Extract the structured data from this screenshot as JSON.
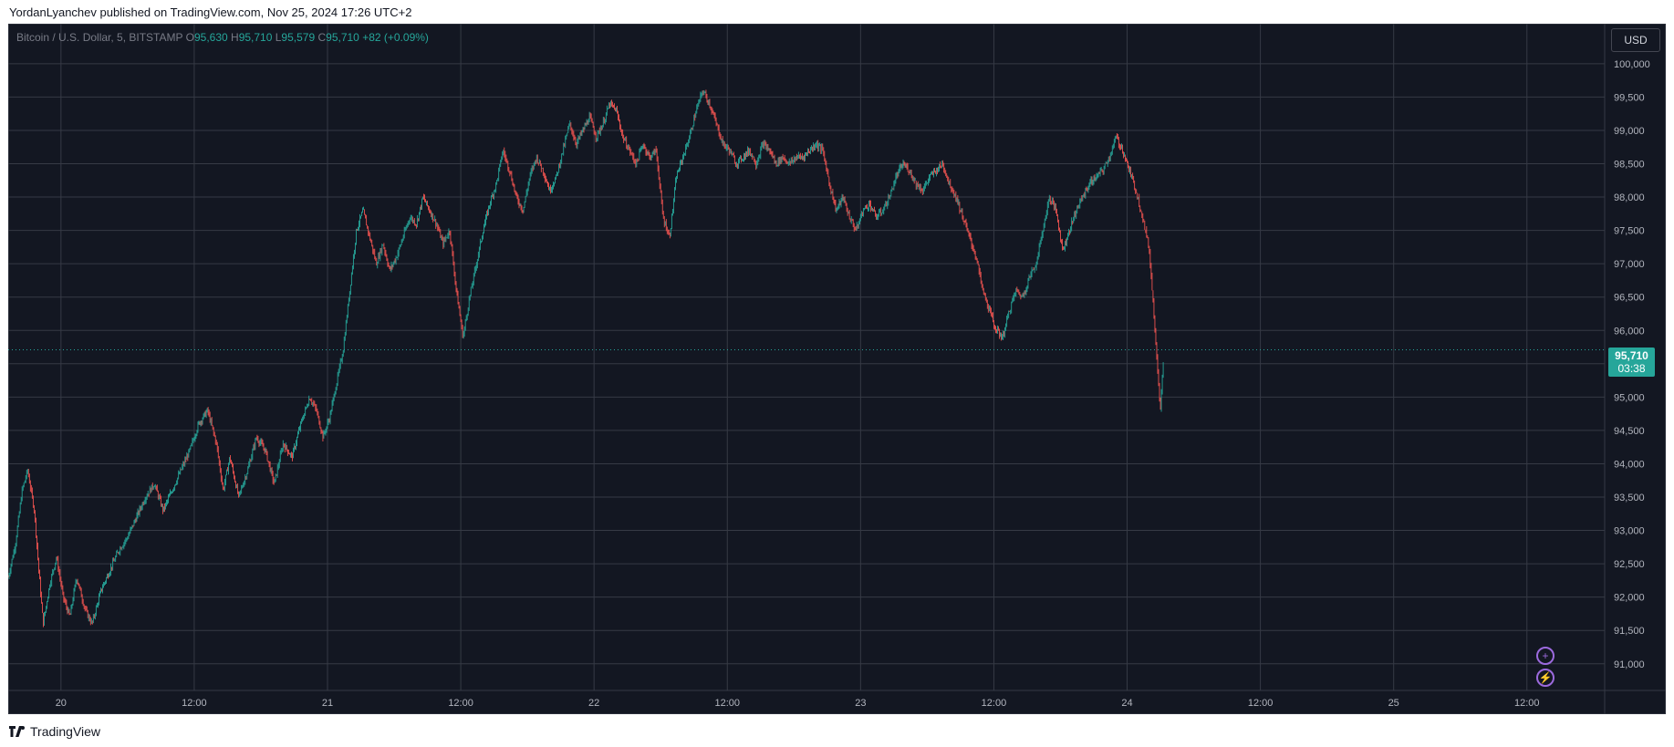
{
  "header": {
    "publish_text": "YordanLyanchev published on TradingView.com, Nov 25, 2024 17:26 UTC+2"
  },
  "legend": {
    "symbol": "Bitcoin / U.S. Dollar, 5, BITSTAMP",
    "o_label": "O",
    "o_value": "95,630",
    "h_label": "H",
    "h_value": "95,710",
    "l_label": "L",
    "l_value": "95,579",
    "c_label": "C",
    "c_value": "95,710",
    "change": "+82 (+0.09%)"
  },
  "currency_button": "USD",
  "last_price": {
    "price": "95,710",
    "countdown": "03:38"
  },
  "footer": {
    "brand": "TradingView"
  },
  "colors": {
    "background": "#131722",
    "grid": "#363a45",
    "up": "#26a69a",
    "down": "#ef5350",
    "last_price": "#26a69a",
    "accent": "#9c6ade"
  },
  "icons": {
    "logo": "tradingview-logo-icon",
    "plus": "plus-circle-icon",
    "lightning": "lightning-icon"
  },
  "chart_data": {
    "type": "candlestick",
    "title": "Bitcoin / U.S. Dollar, 5, BITSTAMP",
    "interval": "5",
    "exchange": "BITSTAMP",
    "currency": "USD",
    "x_tick_labels": [
      "20",
      "12:00",
      "21",
      "12:00",
      "22",
      "12:00",
      "23",
      "12:00",
      "24",
      "12:00",
      "25",
      "12:00"
    ],
    "x_tick_times_hours": [
      24,
      36,
      48,
      60,
      72,
      84,
      96,
      108,
      120,
      132,
      144,
      156
    ],
    "x_range_hours": [
      19.25,
      163.0
    ],
    "y_tick_labels": [
      "91,000",
      "91,500",
      "92,000",
      "92,500",
      "93,000",
      "93,500",
      "94,000",
      "94,500",
      "95,000",
      "95,500",
      "96,000",
      "96,500",
      "97,000",
      "97,500",
      "98,000",
      "98,500",
      "99,000",
      "99,500",
      "100,000"
    ],
    "ylim": [
      90600,
      100600
    ],
    "grid": true,
    "last_price": 95710,
    "price_path": [
      [
        19.25,
        92300
      ],
      [
        19.9,
        92800
      ],
      [
        20.5,
        93600
      ],
      [
        21.0,
        93900
      ],
      [
        21.6,
        93300
      ],
      [
        22.0,
        92400
      ],
      [
        22.4,
        91600
      ],
      [
        23.0,
        92200
      ],
      [
        23.6,
        92600
      ],
      [
        24.2,
        92000
      ],
      [
        24.8,
        91700
      ],
      [
        25.4,
        92300
      ],
      [
        26.2,
        91800
      ],
      [
        26.8,
        91600
      ],
      [
        27.6,
        92100
      ],
      [
        28.4,
        92400
      ],
      [
        29.2,
        92700
      ],
      [
        30.0,
        92900
      ],
      [
        30.8,
        93200
      ],
      [
        31.6,
        93500
      ],
      [
        32.4,
        93700
      ],
      [
        33.2,
        93300
      ],
      [
        34.0,
        93600
      ],
      [
        34.8,
        93900
      ],
      [
        35.6,
        94200
      ],
      [
        36.4,
        94600
      ],
      [
        37.2,
        94800
      ],
      [
        38.0,
        94300
      ],
      [
        38.6,
        93600
      ],
      [
        39.2,
        94100
      ],
      [
        40.0,
        93500
      ],
      [
        40.8,
        93900
      ],
      [
        41.6,
        94400
      ],
      [
        42.4,
        94200
      ],
      [
        43.2,
        93700
      ],
      [
        44.0,
        94300
      ],
      [
        44.8,
        94100
      ],
      [
        45.6,
        94600
      ],
      [
        46.4,
        95000
      ],
      [
        47.0,
        94800
      ],
      [
        47.6,
        94400
      ],
      [
        48.2,
        94700
      ],
      [
        48.8,
        95200
      ],
      [
        49.4,
        95700
      ],
      [
        50.0,
        96600
      ],
      [
        50.6,
        97500
      ],
      [
        51.2,
        97800
      ],
      [
        51.8,
        97400
      ],
      [
        52.4,
        97000
      ],
      [
        53.0,
        97300
      ],
      [
        53.6,
        96900
      ],
      [
        54.2,
        97100
      ],
      [
        54.8,
        97400
      ],
      [
        55.4,
        97700
      ],
      [
        56.0,
        97600
      ],
      [
        56.6,
        98000
      ],
      [
        57.2,
        97800
      ],
      [
        57.8,
        97600
      ],
      [
        58.4,
        97300
      ],
      [
        59.0,
        97500
      ],
      [
        59.6,
        96600
      ],
      [
        60.2,
        95900
      ],
      [
        60.8,
        96500
      ],
      [
        61.4,
        97000
      ],
      [
        62.0,
        97500
      ],
      [
        62.6,
        97900
      ],
      [
        63.2,
        98200
      ],
      [
        63.8,
        98700
      ],
      [
        64.4,
        98400
      ],
      [
        65.0,
        98000
      ],
      [
        65.6,
        97800
      ],
      [
        66.2,
        98300
      ],
      [
        66.8,
        98600
      ],
      [
        67.4,
        98400
      ],
      [
        68.0,
        98100
      ],
      [
        68.6,
        98300
      ],
      [
        69.2,
        98700
      ],
      [
        69.8,
        99100
      ],
      [
        70.4,
        98800
      ],
      [
        71.0,
        99000
      ],
      [
        71.6,
        99200
      ],
      [
        72.2,
        98900
      ],
      [
        72.8,
        99100
      ],
      [
        73.4,
        99400
      ],
      [
        74.0,
        99300
      ],
      [
        74.6,
        98900
      ],
      [
        75.2,
        98700
      ],
      [
        75.8,
        98500
      ],
      [
        76.4,
        98800
      ],
      [
        77.0,
        98600
      ],
      [
        77.6,
        98700
      ],
      [
        78.2,
        97700
      ],
      [
        78.8,
        97400
      ],
      [
        79.4,
        98300
      ],
      [
        80.0,
        98600
      ],
      [
        80.6,
        98900
      ],
      [
        81.2,
        99300
      ],
      [
        81.8,
        99600
      ],
      [
        82.4,
        99400
      ],
      [
        83.0,
        99100
      ],
      [
        83.6,
        98800
      ],
      [
        84.2,
        98700
      ],
      [
        84.8,
        98500
      ],
      [
        85.4,
        98600
      ],
      [
        86.0,
        98700
      ],
      [
        86.6,
        98500
      ],
      [
        87.2,
        98800
      ],
      [
        87.8,
        98700
      ],
      [
        88.4,
        98500
      ],
      [
        89.0,
        98600
      ],
      [
        89.6,
        98500
      ],
      [
        90.2,
        98600
      ],
      [
        90.8,
        98600
      ],
      [
        91.4,
        98700
      ],
      [
        92.0,
        98800
      ],
      [
        92.6,
        98700
      ],
      [
        93.2,
        98200
      ],
      [
        93.8,
        97800
      ],
      [
        94.4,
        98000
      ],
      [
        95.0,
        97700
      ],
      [
        95.6,
        97500
      ],
      [
        96.2,
        97800
      ],
      [
        96.8,
        97900
      ],
      [
        97.4,
        97700
      ],
      [
        98.0,
        97800
      ],
      [
        98.6,
        98000
      ],
      [
        99.2,
        98300
      ],
      [
        99.8,
        98500
      ],
      [
        100.4,
        98400
      ],
      [
        101.0,
        98200
      ],
      [
        101.6,
        98100
      ],
      [
        102.2,
        98300
      ],
      [
        102.8,
        98400
      ],
      [
        103.4,
        98500
      ],
      [
        104.0,
        98200
      ],
      [
        104.6,
        98000
      ],
      [
        105.2,
        97700
      ],
      [
        105.8,
        97400
      ],
      [
        106.4,
        97100
      ],
      [
        107.0,
        96600
      ],
      [
        107.6,
        96300
      ],
      [
        108.2,
        96000
      ],
      [
        108.8,
        95900
      ],
      [
        109.4,
        96300
      ],
      [
        110.0,
        96600
      ],
      [
        110.6,
        96500
      ],
      [
        111.2,
        96800
      ],
      [
        111.8,
        97000
      ],
      [
        112.4,
        97500
      ],
      [
        113.0,
        98000
      ],
      [
        113.6,
        97800
      ],
      [
        114.2,
        97200
      ],
      [
        114.8,
        97500
      ],
      [
        115.4,
        97800
      ],
      [
        116.0,
        98000
      ],
      [
        116.6,
        98200
      ],
      [
        117.2,
        98300
      ],
      [
        117.8,
        98400
      ],
      [
        118.4,
        98600
      ],
      [
        119.0,
        98900
      ],
      [
        119.6,
        98700
      ],
      [
        120.2,
        98400
      ],
      [
        120.8,
        98100
      ],
      [
        121.4,
        97700
      ],
      [
        122.0,
        97200
      ],
      [
        122.6,
        95800
      ],
      [
        123.0,
        94800
      ],
      [
        123.3,
        95700
      ]
    ]
  }
}
